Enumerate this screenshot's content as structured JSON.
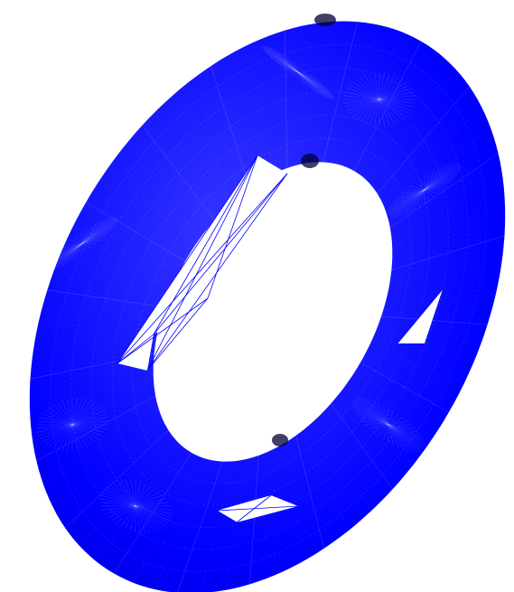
{
  "scene": {
    "background_color": "#ffffff",
    "model": {
      "shape": "torus",
      "render_style": "wireframe mesh",
      "mesh_color": "#0000ff",
      "shadow_color": "#000033",
      "highlight_color": "#3b3bff"
    }
  }
}
